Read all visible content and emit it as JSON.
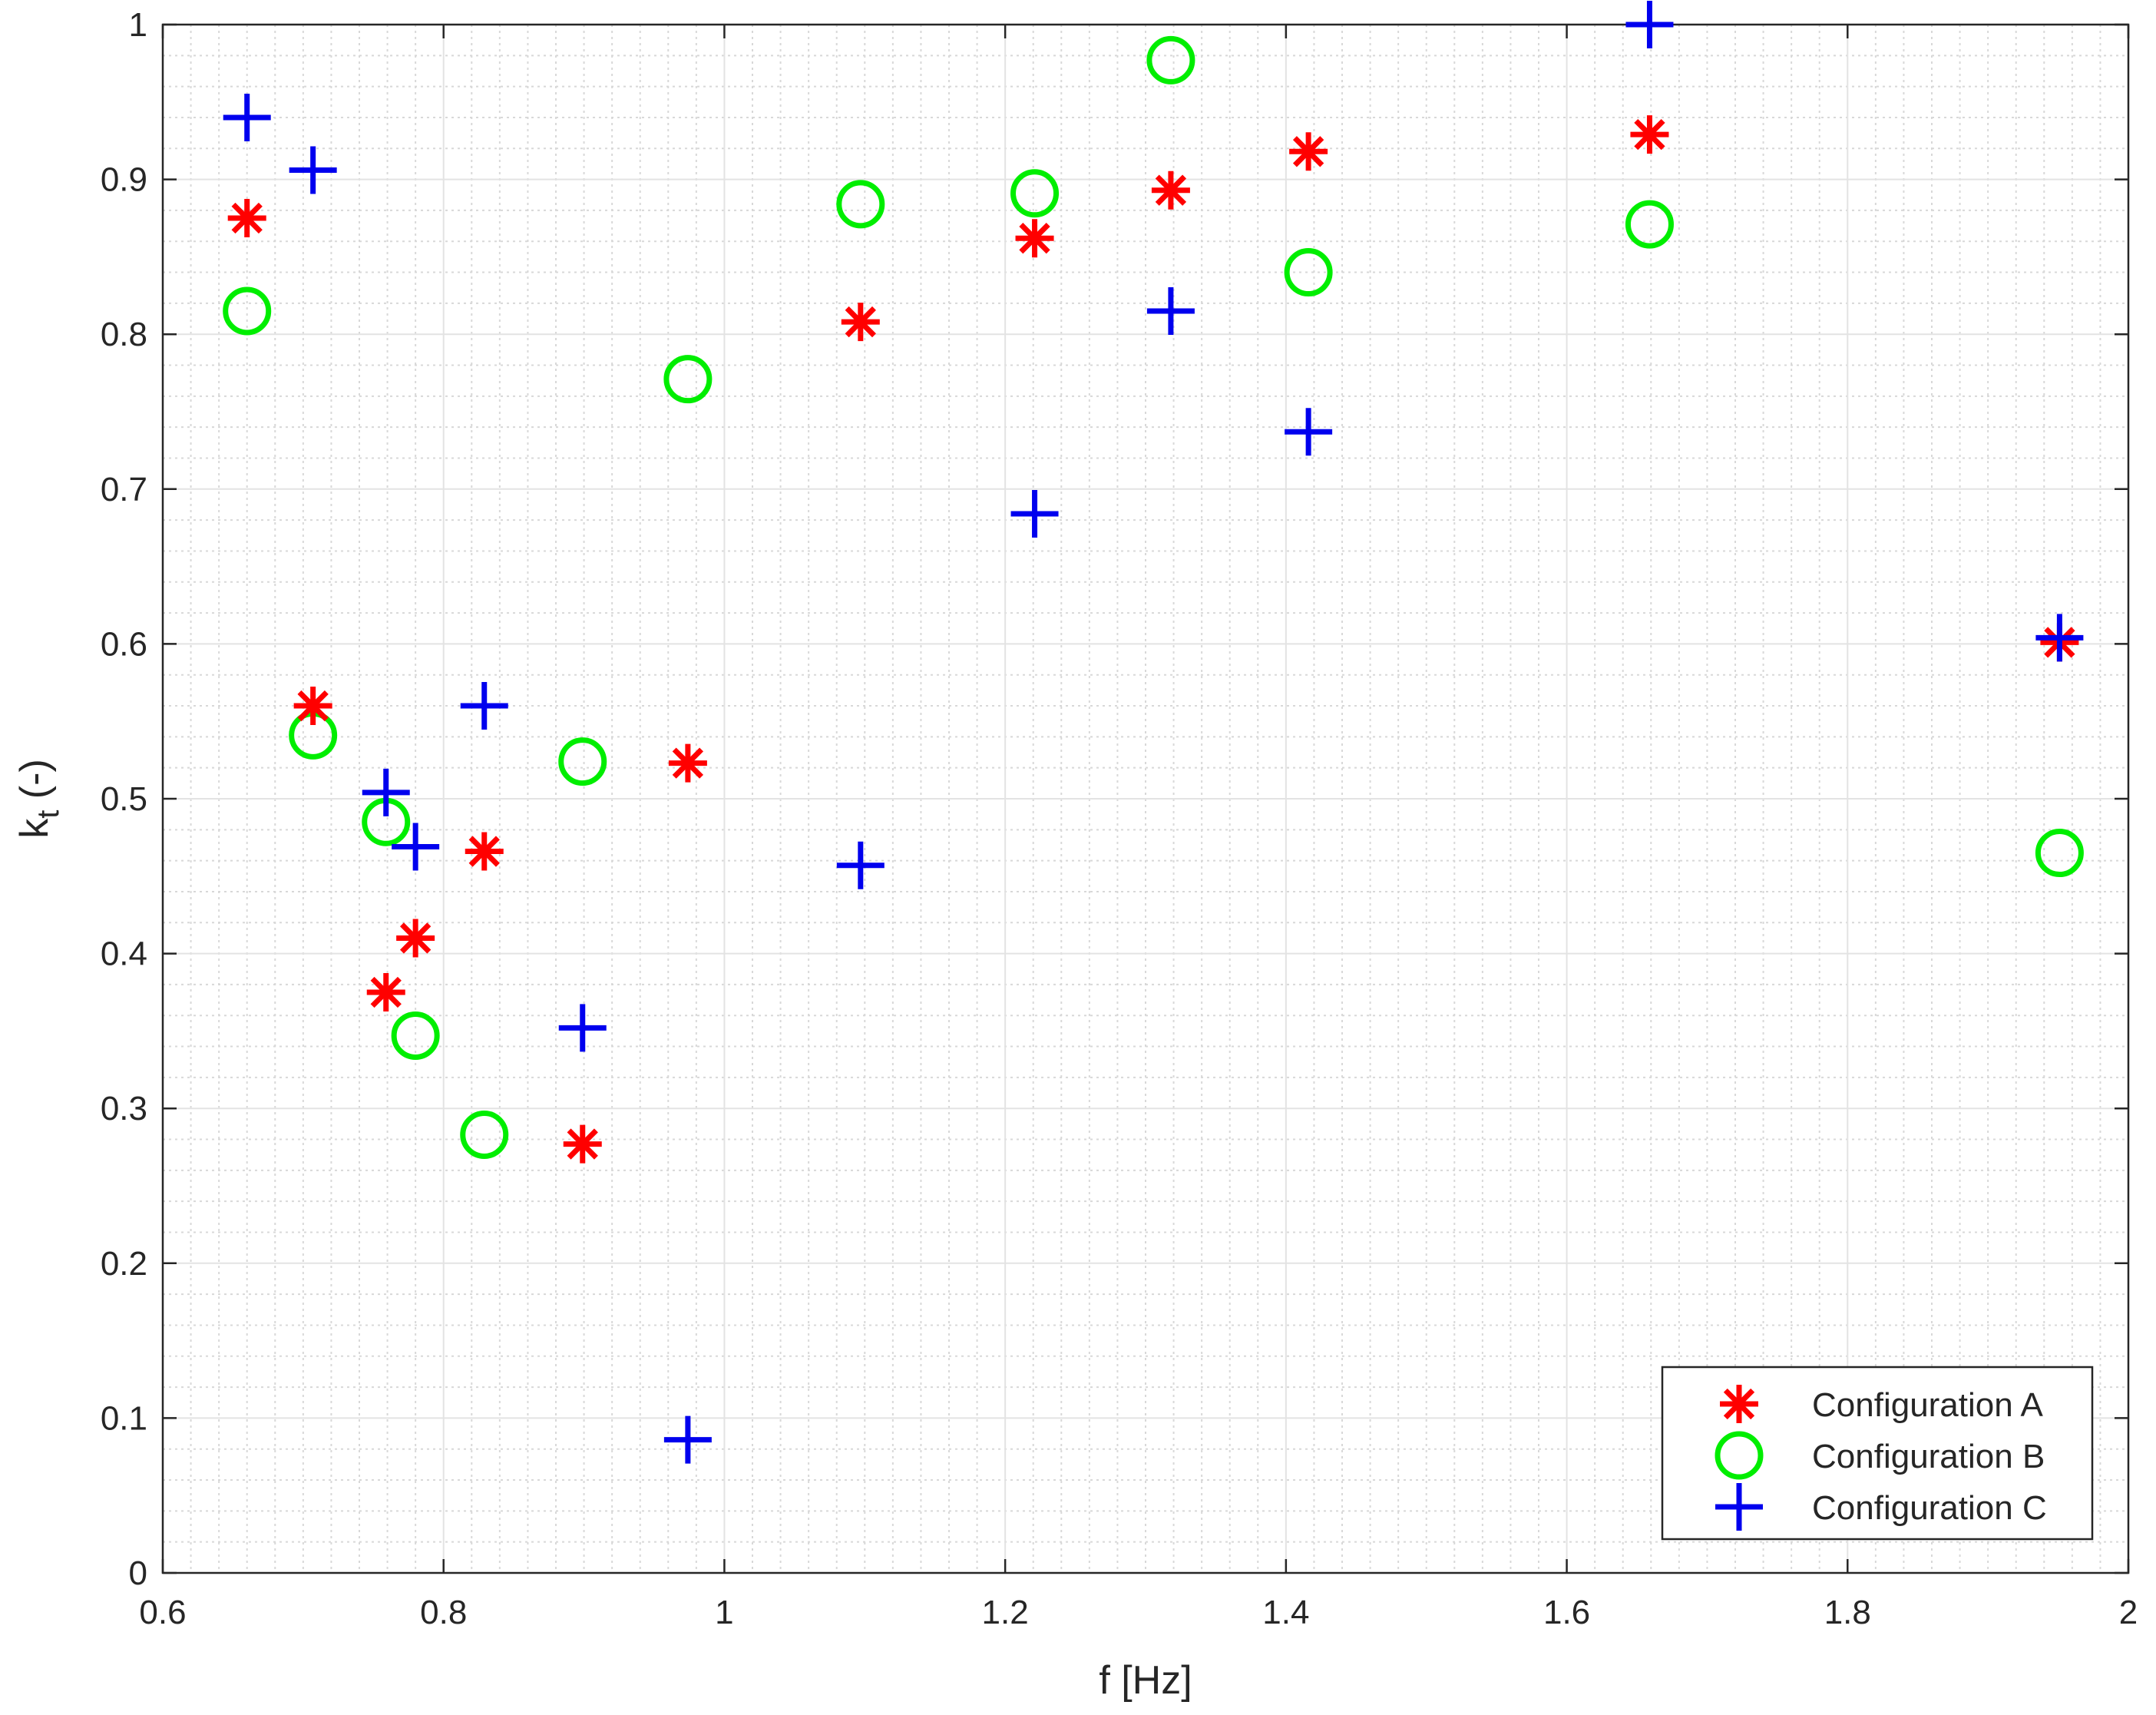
{
  "chart_data": {
    "type": "scatter",
    "xlabel": "f [Hz]",
    "ylabel": {
      "main": "k",
      "subscript": "t",
      "suffix": " (-)"
    },
    "xlim": [
      0.6,
      2
    ],
    "ylim": [
      0,
      1
    ],
    "x_ticks": [
      "0.6",
      "0.8",
      "1",
      "1.2",
      "1.4",
      "1.6",
      "1.8",
      "2"
    ],
    "y_ticks": [
      "0",
      "0.1",
      "0.2",
      "0.3",
      "0.4",
      "0.5",
      "0.6",
      "0.7",
      "0.8",
      "0.9",
      "1"
    ],
    "grid": "major and minor",
    "legend_position": "bottom-right",
    "series": [
      {
        "name": "Configuration A",
        "marker": "asterisk",
        "color": "#ff0000",
        "points": [
          [
            0.66,
            0.875
          ],
          [
            0.707,
            0.56
          ],
          [
            0.759,
            0.375
          ],
          [
            0.78,
            0.41
          ],
          [
            0.829,
            0.466
          ],
          [
            0.899,
            0.277
          ],
          [
            0.974,
            0.523
          ],
          [
            1.097,
            0.808
          ],
          [
            1.221,
            0.862
          ],
          [
            1.318,
            0.893
          ],
          [
            1.416,
            0.918
          ],
          [
            1.659,
            0.929
          ],
          [
            1.951,
            0.601
          ]
        ]
      },
      {
        "name": "Configuration B",
        "marker": "circle",
        "color": "#00ee00",
        "points": [
          [
            0.66,
            0.815
          ],
          [
            0.707,
            0.541
          ],
          [
            0.759,
            0.485
          ],
          [
            0.78,
            0.347
          ],
          [
            0.829,
            0.283
          ],
          [
            0.899,
            0.524
          ],
          [
            0.974,
            0.771
          ],
          [
            1.097,
            0.884
          ],
          [
            1.221,
            0.891
          ],
          [
            1.318,
            0.977
          ],
          [
            1.416,
            0.84
          ],
          [
            1.659,
            0.871
          ],
          [
            1.951,
            0.465
          ]
        ]
      },
      {
        "name": "Configuration C",
        "marker": "plus",
        "color": "#0000ee",
        "points": [
          [
            0.66,
            0.94
          ],
          [
            0.707,
            0.906
          ],
          [
            0.759,
            0.504
          ],
          [
            0.78,
            0.469
          ],
          [
            0.829,
            0.56
          ],
          [
            0.899,
            0.352
          ],
          [
            0.974,
            0.086
          ],
          [
            1.097,
            0.457
          ],
          [
            1.221,
            0.684
          ],
          [
            1.318,
            0.815
          ],
          [
            1.416,
            0.737
          ],
          [
            1.659,
            1.0
          ],
          [
            1.951,
            0.604
          ]
        ]
      }
    ]
  }
}
